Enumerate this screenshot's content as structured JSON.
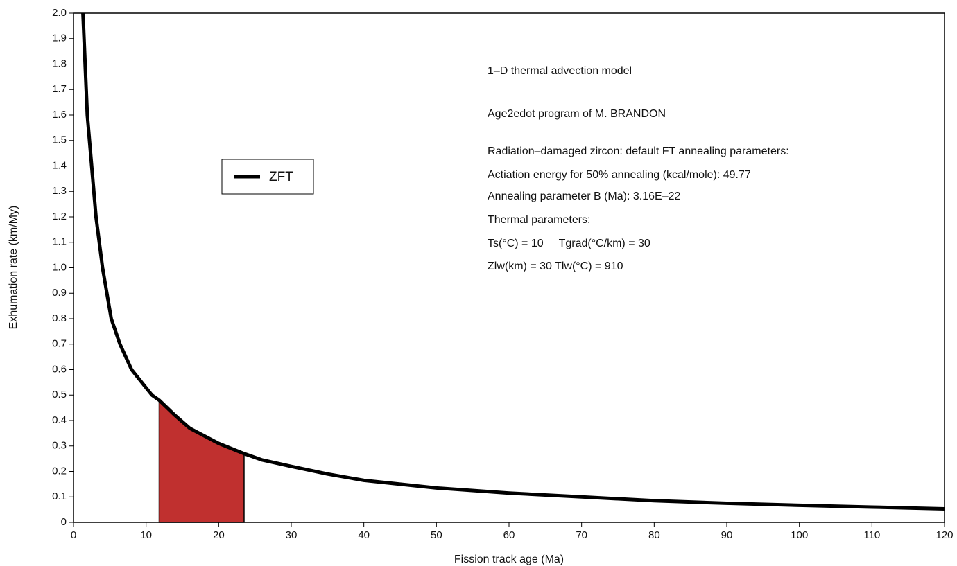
{
  "chart_data": {
    "type": "line",
    "x_label": "Fission track age (Ma)",
    "y_label": "Exhumation rate (km/My)",
    "x": [
      1.3,
      1.9,
      3.1,
      4.0,
      5.2,
      6.4,
      8.0,
      10.8,
      11.8,
      14,
      16,
      18,
      20,
      23.5,
      26,
      30,
      35,
      40,
      50,
      60,
      70,
      80,
      90,
      100,
      110,
      120
    ],
    "series": [
      {
        "name": "ZFT",
        "color": "#000000",
        "values": [
          2.0,
          1.6,
          1.2,
          1.0,
          0.8,
          0.7,
          0.6,
          0.5,
          0.48,
          0.42,
          0.37,
          0.34,
          0.31,
          0.27,
          0.245,
          0.22,
          0.19,
          0.165,
          0.135,
          0.115,
          0.1,
          0.085,
          0.075,
          0.067,
          0.06,
          0.053
        ]
      }
    ],
    "shaded_range": [
      11.8,
      23.5
    ],
    "shaded_color": "#c0302f",
    "xlim": [
      0,
      120
    ],
    "xticks": [
      0,
      10,
      20,
      30,
      40,
      50,
      60,
      70,
      80,
      90,
      100,
      110,
      120
    ],
    "ylim": [
      0,
      2.0
    ],
    "yticks": [
      0,
      0.1,
      0.2,
      0.3,
      0.4,
      0.5,
      0.6,
      0.7,
      0.8,
      0.9,
      {
        "value": 1.0,
        "label": "1.0"
      },
      1.1,
      1.2,
      1.3,
      1.4,
      1.5,
      1.6,
      1.7,
      1.8,
      1.9,
      {
        "value": 2.0,
        "label": "2.0"
      }
    ],
    "annotations": [
      "1–D thermal advection model",
      "Age2edot program of M. BRANDON",
      "Radiation–damaged zircon: default FT annealing parameters:",
      "Actiation energy for 50% annealing (kcal/mole): 49.77",
      "Annealing parameter B (Ma): 3.16E–22",
      "Thermal parameters:",
      "Ts(°C) = 10     Tgrad(°C/km) = 30",
      "Zlw(km) = 30 Tlw(°C) = 910"
    ]
  }
}
